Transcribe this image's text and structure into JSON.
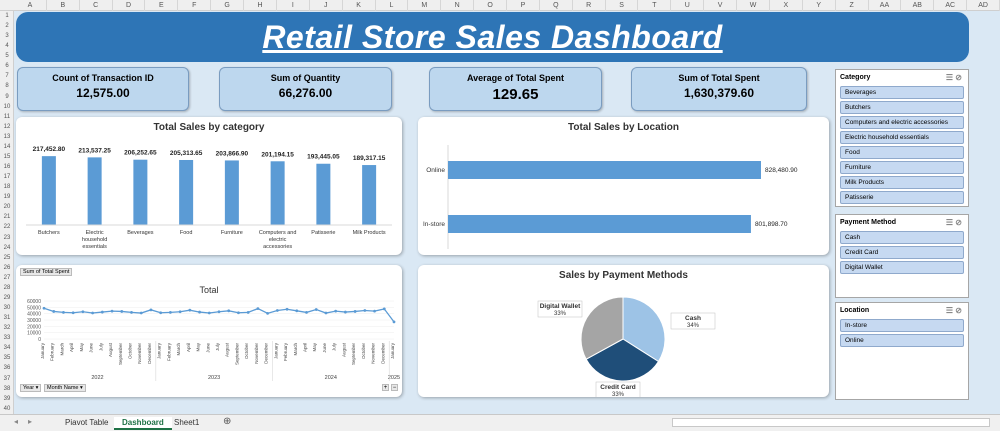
{
  "columns": [
    "A",
    "B",
    "C",
    "D",
    "E",
    "F",
    "G",
    "H",
    "I",
    "J",
    "K",
    "L",
    "M",
    "N",
    "O",
    "P",
    "Q",
    "R",
    "S",
    "T",
    "U",
    "V",
    "W",
    "X",
    "Y",
    "Z",
    "AA",
    "AB",
    "AC",
    "AD"
  ],
  "rows": [
    "1",
    "2",
    "3",
    "4",
    "5",
    "6",
    "7",
    "8",
    "9",
    "10",
    "11",
    "12",
    "13",
    "14",
    "15",
    "16",
    "17",
    "18",
    "19",
    "20",
    "21",
    "22",
    "23",
    "24",
    "25",
    "26",
    "27",
    "28",
    "29",
    "30",
    "31",
    "32",
    "33",
    "34",
    "35",
    "36",
    "37",
    "38",
    "39",
    "40"
  ],
  "title": "Retail Store Sales Dashboard",
  "kpis": [
    {
      "label": "Count of Transaction ID",
      "value": "12,575.00"
    },
    {
      "label": "Sum of Quantity",
      "value": "66,276.00"
    },
    {
      "label": "Average of Total Spent",
      "value": "129.65"
    },
    {
      "label": "Sum of Total Spent",
      "value": "1,630,379.60"
    }
  ],
  "chart_data": [
    {
      "type": "bar",
      "title": "Total Sales by category",
      "categories": [
        "Butchers",
        "Electric household essentials",
        "Beverages",
        "Food",
        "Furniture",
        "Computers and electric accessories",
        "Patisserie",
        "Milk Products"
      ],
      "values": [
        217452.8,
        213537.25,
        206252.65,
        205313.65,
        203866.9,
        201194.15,
        193445.05,
        189317.15
      ],
      "value_labels": [
        "217,452.80",
        "213,537.25",
        "206,252.65",
        "205,313.65",
        "203,866.90",
        "201,194.15",
        "193,445.05",
        "189,317.15"
      ],
      "color": "#5b9bd5"
    },
    {
      "type": "bar",
      "orientation": "horizontal",
      "title": "Total Sales by Location",
      "categories": [
        "Online",
        "In-store"
      ],
      "values": [
        828480.9,
        801898.7
      ],
      "value_labels": [
        "828,480.90",
        "801,898.70"
      ],
      "color": "#5b9bd5"
    },
    {
      "type": "line",
      "title": "Total",
      "field_button": "Sum of Total Spent",
      "filter_buttons": [
        "Year",
        "Month Name"
      ],
      "y_ticks": [
        "60000",
        "50000",
        "40000",
        "30000",
        "20000",
        "10000",
        "0"
      ],
      "ylim": [
        0,
        60000
      ],
      "x": [
        "January",
        "February",
        "March",
        "April",
        "May",
        "June",
        "July",
        "August",
        "September",
        "October",
        "November",
        "December",
        "January",
        "February",
        "March",
        "April",
        "May",
        "June",
        "July",
        "August",
        "September",
        "October",
        "November",
        "December",
        "January",
        "February",
        "March",
        "April",
        "May",
        "June",
        "July",
        "August",
        "September",
        "October",
        "November",
        "December",
        "January"
      ],
      "years": [
        {
          "label": "2022",
          "start": 0,
          "end": 11
        },
        {
          "label": "2023",
          "start": 12,
          "end": 23
        },
        {
          "label": "2024",
          "start": 24,
          "end": 35
        },
        {
          "label": "2025",
          "start": 36,
          "end": 36
        }
      ],
      "values": [
        48500,
        43500,
        42000,
        41500,
        43000,
        41000,
        42500,
        44000,
        43500,
        42000,
        41000,
        46000,
        41500,
        42000,
        43000,
        45500,
        42500,
        41000,
        43000,
        44500,
        41500,
        42000,
        48000,
        40500,
        45000,
        47000,
        44500,
        42000,
        46500,
        41000,
        44000,
        42500,
        43500,
        45000,
        44000,
        47500,
        27000
      ],
      "color": "#5b9bd5"
    },
    {
      "type": "pie",
      "title": "Sales by Payment Methods",
      "slices": [
        {
          "label": "Cash",
          "percent": "34%",
          "value": 34,
          "color": "#9dc3e6"
        },
        {
          "label": "Credit Card",
          "percent": "33%",
          "value": 33,
          "color": "#1f4e79"
        },
        {
          "label": "Digital Wallet",
          "percent": "33%",
          "value": 33,
          "color": "#a5a5a5"
        }
      ]
    }
  ],
  "slicers": [
    {
      "title": "Category",
      "items": [
        "Beverages",
        "Butchers",
        "Computers and electric accessories",
        "Electric household essentials",
        "Food",
        "Furniture",
        "Milk Products",
        "Patisserie"
      ]
    },
    {
      "title": "Payment Method",
      "items": [
        "Cash",
        "Credit Card",
        "Digital Wallet"
      ]
    },
    {
      "title": "Location",
      "items": [
        "In-store",
        "Online"
      ]
    }
  ],
  "sheets": [
    "Piavot Table",
    "Dashboard",
    "Sheet1"
  ],
  "active_sheet": "Dashboard"
}
